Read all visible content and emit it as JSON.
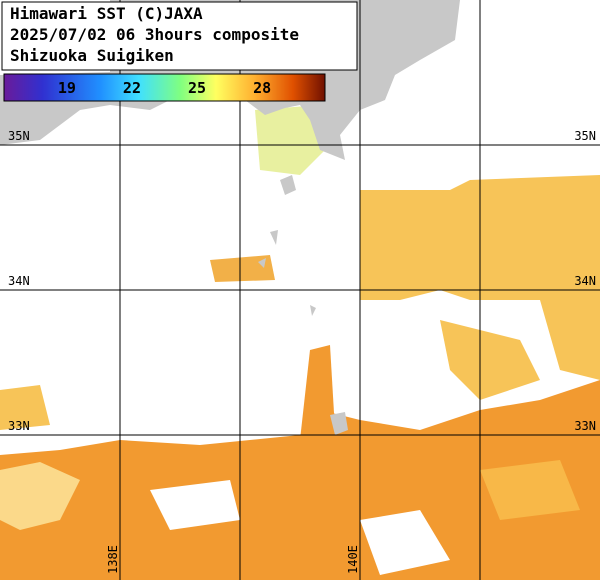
{
  "header": {
    "lines": [
      "Himawari SST (C)JAXA",
      "2025/07/02 06 3hours composite",
      "Shizuoka Suigiken"
    ]
  },
  "colorbar": {
    "range": [
      16.1,
      30.9
    ],
    "ticks": [
      19,
      22,
      25,
      28
    ]
  },
  "map": {
    "lon_range": [
      137,
      142
    ],
    "lat_range": [
      32,
      36
    ],
    "lat_ticks": [
      {
        "value": 35,
        "label": "35N"
      },
      {
        "value": 34,
        "label": "34N"
      },
      {
        "value": 33,
        "label": "33N"
      }
    ],
    "lon_ticks": [
      {
        "value": 138,
        "label": "138E"
      },
      {
        "value": 139,
        "label": null
      },
      {
        "value": 140,
        "label": "140E"
      },
      {
        "value": 141,
        "label": null
      }
    ]
  }
}
